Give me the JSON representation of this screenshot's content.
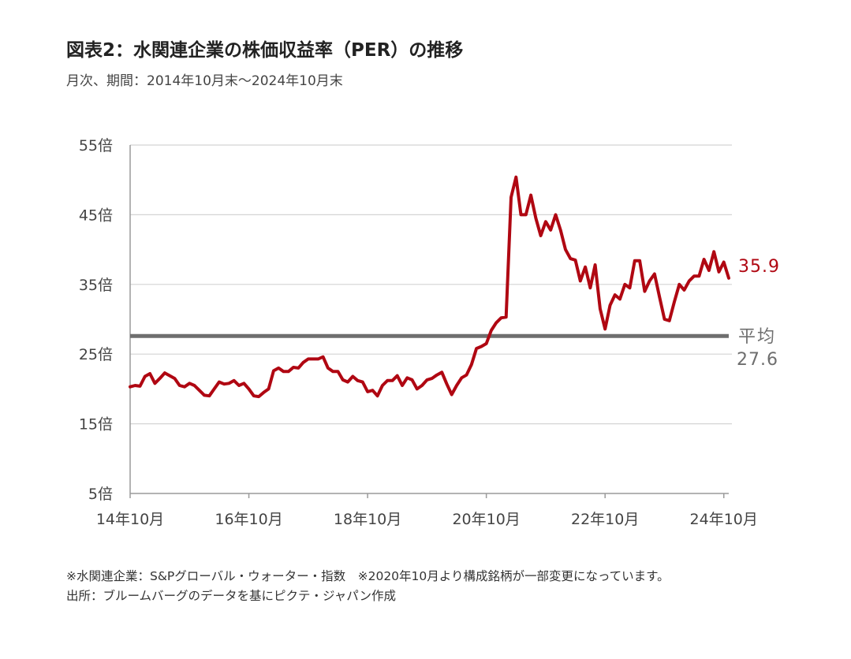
{
  "title": "図表2：水関連企業の株価収益率（PER）の推移",
  "subtitle": "月次、期間：2014年10月末～2024年10月末",
  "notes": [
    "※水関連企業：S&Pグローバル・ウォーター・指数　※2020年10月より構成銘柄が一部変更になっています。",
    "出所：ブルームバーグのデータを基にピクテ・ジャパン作成"
  ],
  "colors": {
    "series": "#b00712",
    "average": "#6e6e6e",
    "axis": "#9a9a9a",
    "grid": "#d4d4d4"
  },
  "chart_data": {
    "type": "line",
    "title": "図表2：水関連企業の株価収益率（PER）の推移",
    "xlabel": "",
    "ylabel": "",
    "xlim": [
      0,
      121
    ],
    "ylim": [
      5,
      55
    ],
    "yticks": [
      5,
      15,
      25,
      35,
      45,
      55
    ],
    "ytick_labels": [
      "5倍",
      "15倍",
      "25倍",
      "35倍",
      "45倍",
      "55倍"
    ],
    "xticks": [
      0,
      24,
      48,
      72,
      96,
      120
    ],
    "xtick_labels": [
      "14年10月",
      "16年10月",
      "18年10月",
      "20年10月",
      "22年10月",
      "24年10月"
    ],
    "grid": true,
    "series": [
      {
        "values": [
          20.3,
          20.5,
          20.4,
          21.8,
          22.2,
          20.8,
          21.5,
          22.3,
          21.9,
          21.5,
          20.5,
          20.3,
          20.8,
          20.5,
          19.8,
          19.1,
          19.0,
          20.0,
          21.0,
          20.7,
          20.8,
          21.2,
          20.5,
          20.8,
          20.0,
          19.0,
          18.9,
          19.5,
          20.0,
          22.6,
          23.0,
          22.5,
          22.5,
          23.1,
          23.0,
          23.8,
          24.3,
          24.3,
          24.3,
          24.6,
          23.0,
          22.5,
          22.5,
          21.3,
          21.0,
          21.8,
          21.2,
          21.0,
          19.6,
          19.8,
          19.0,
          20.5,
          21.2,
          21.2,
          21.9,
          20.5,
          21.6,
          21.3,
          20.0,
          20.5,
          21.3,
          21.5,
          22.0,
          22.4,
          20.7,
          19.2,
          20.5,
          21.6,
          22.0,
          23.5,
          25.8,
          26.1,
          26.5,
          28.4,
          29.5,
          30.2,
          30.3,
          47.5,
          50.4,
          45.0,
          45.0,
          47.8,
          44.5,
          42.0,
          44.0,
          42.8,
          45.0,
          42.8,
          40.0,
          38.7,
          38.5,
          35.5,
          37.5,
          34.5,
          37.8,
          31.5,
          28.6,
          32.0,
          33.5,
          32.9,
          35.0,
          34.5,
          38.4,
          38.4,
          34.0,
          35.5,
          36.5,
          33.2,
          30.0,
          29.8,
          32.5,
          35.0,
          34.2,
          35.5,
          36.2,
          36.2,
          38.6,
          37.0,
          39.7,
          36.8,
          38.2,
          35.9
        ]
      }
    ],
    "average": {
      "label": "平均",
      "value": 27.6,
      "value_label": "27.6"
    },
    "end_label": "35.9"
  }
}
